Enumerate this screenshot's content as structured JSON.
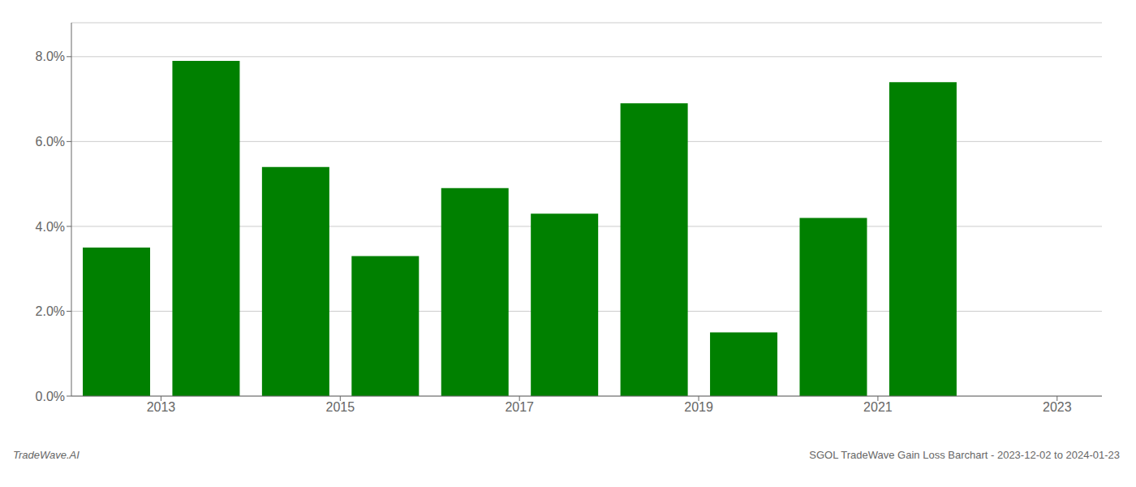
{
  "chart_data": {
    "type": "bar",
    "x": [
      2012.5,
      2013.5,
      2014.5,
      2015.5,
      2016.5,
      2017.5,
      2018.5,
      2019.5,
      2020.5,
      2021.5
    ],
    "values": [
      0.035,
      0.079,
      0.054,
      0.033,
      0.049,
      0.043,
      0.069,
      0.015,
      0.042,
      0.074
    ],
    "color": "#008000",
    "xlim": [
      2012.0,
      2023.5
    ],
    "xticks": [
      2013,
      2015,
      2017,
      2019,
      2021,
      2023
    ],
    "ylim": [
      0,
      0.088
    ],
    "yticks": [
      {
        "value": 0.0,
        "label": "0.0%"
      },
      {
        "value": 0.02,
        "label": "2.0%"
      },
      {
        "value": 0.04,
        "label": "4.0%"
      },
      {
        "value": 0.06,
        "label": "6.0%"
      },
      {
        "value": 0.08,
        "label": "8.0%"
      }
    ],
    "grid": true,
    "annotations": [
      "TradeWave.AI",
      "SGOL TradeWave Gain Loss Barchart - 2023-12-02 to 2024-01-23"
    ]
  }
}
